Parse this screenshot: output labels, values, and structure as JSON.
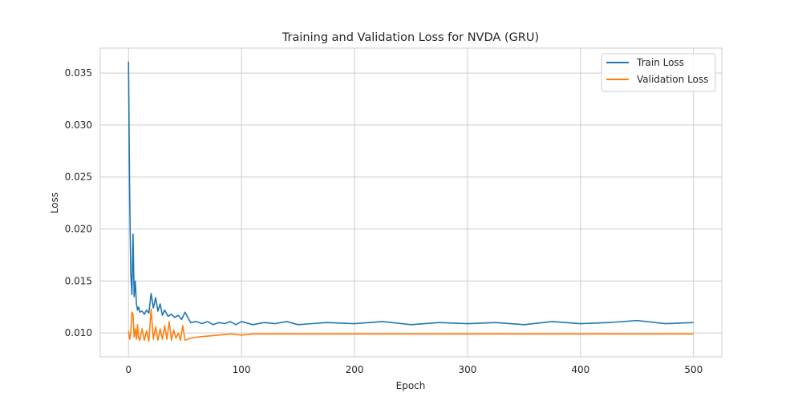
{
  "chart_data": {
    "type": "line",
    "title": "Training and Validation Loss for NVDA (GRU)",
    "xlabel": "Epoch",
    "ylabel": "Loss",
    "xlim": [
      -25,
      525
    ],
    "ylim": [
      0.0077,
      0.0374
    ],
    "xticks": [
      0,
      100,
      200,
      300,
      400,
      500
    ],
    "yticks": [
      0.01,
      0.015,
      0.02,
      0.025,
      0.03,
      0.035
    ],
    "xtick_labels": [
      "0",
      "100",
      "200",
      "300",
      "400",
      "500"
    ],
    "ytick_labels": [
      "0.010",
      "0.015",
      "0.020",
      "0.025",
      "0.030",
      "0.035"
    ],
    "grid": true,
    "legend_position": "top-right",
    "series": [
      {
        "name": "Train Loss",
        "color": "#1f77b4",
        "x": [
          0,
          1,
          2,
          3,
          4,
          5,
          6,
          7,
          8,
          9,
          10,
          12,
          14,
          16,
          18,
          20,
          22,
          24,
          26,
          28,
          30,
          32,
          35,
          38,
          41,
          44,
          47,
          50,
          55,
          60,
          65,
          70,
          75,
          80,
          85,
          90,
          95,
          100,
          110,
          120,
          130,
          140,
          150,
          175,
          200,
          225,
          250,
          275,
          300,
          325,
          350,
          375,
          400,
          425,
          450,
          475,
          500
        ],
        "y": [
          0.0361,
          0.0235,
          0.0158,
          0.0137,
          0.0195,
          0.0135,
          0.015,
          0.0128,
          0.0122,
          0.0125,
          0.012,
          0.0121,
          0.0118,
          0.0122,
          0.0119,
          0.0138,
          0.0124,
          0.0134,
          0.0121,
          0.0128,
          0.0117,
          0.0122,
          0.0116,
          0.0118,
          0.0115,
          0.0117,
          0.0113,
          0.012,
          0.011,
          0.0111,
          0.0109,
          0.0111,
          0.0108,
          0.011,
          0.0109,
          0.0111,
          0.0108,
          0.0111,
          0.0108,
          0.011,
          0.0109,
          0.0111,
          0.0108,
          0.011,
          0.0109,
          0.0111,
          0.0108,
          0.011,
          0.0109,
          0.011,
          0.0108,
          0.0111,
          0.0109,
          0.011,
          0.0112,
          0.0109,
          0.011
        ]
      },
      {
        "name": "Validation Loss",
        "color": "#ff7f0e",
        "x": [
          0,
          1,
          2,
          3,
          4,
          5,
          6,
          7,
          8,
          9,
          10,
          12,
          14,
          16,
          18,
          20,
          22,
          24,
          26,
          28,
          30,
          32,
          34,
          36,
          38,
          40,
          42,
          44,
          46,
          48,
          50,
          55,
          60,
          70,
          80,
          90,
          100,
          110,
          120,
          130,
          140,
          150,
          200,
          250,
          300,
          350,
          400,
          450,
          500
        ],
        "y": [
          0.0102,
          0.0094,
          0.01,
          0.012,
          0.0118,
          0.0096,
          0.0104,
          0.0094,
          0.0108,
          0.0095,
          0.0093,
          0.0104,
          0.0093,
          0.0102,
          0.0092,
          0.0123,
          0.0094,
          0.0106,
          0.0093,
          0.0104,
          0.0094,
          0.0107,
          0.0094,
          0.0111,
          0.0093,
          0.0103,
          0.0095,
          0.01,
          0.0093,
          0.0107,
          0.0093,
          0.0095,
          0.0096,
          0.0097,
          0.0098,
          0.0099,
          0.0098,
          0.0099,
          0.0099,
          0.0099,
          0.0099,
          0.0099,
          0.0099,
          0.0099,
          0.0099,
          0.0099,
          0.0099,
          0.0099,
          0.0099
        ]
      }
    ]
  },
  "colors": {
    "grid": "#cccccc",
    "frame": "#cccccc",
    "text": "#262626"
  }
}
